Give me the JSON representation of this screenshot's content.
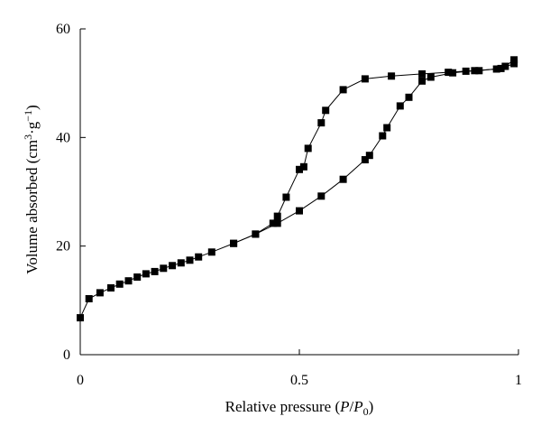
{
  "chart_data": {
    "type": "scatter",
    "xlabel": {
      "prefix": "Relative pressure (",
      "italic1": "P",
      "slash": "/",
      "italic2": "P",
      "subscript": "0",
      "suffix": ")"
    },
    "ylabel": {
      "prefix": "Volume absorbed (cm",
      "sup1": "3",
      "middle": "·g",
      "sup2": "−1",
      "suffix": ")"
    },
    "xlim": [
      0,
      1
    ],
    "ylim": [
      0,
      60
    ],
    "xticks": [
      {
        "value": 0,
        "label": "0"
      },
      {
        "value": 0.5,
        "label": "0.5"
      },
      {
        "value": 1,
        "label": "1"
      }
    ],
    "yticks": [
      {
        "value": 0,
        "label": "0"
      },
      {
        "value": 20,
        "label": "20"
      },
      {
        "value": 40,
        "label": "40"
      },
      {
        "value": 60,
        "label": "60"
      }
    ],
    "grid": false,
    "legend": "none",
    "marker_color": "#000000",
    "series": [
      {
        "points": [
          [
            0.0,
            6.8
          ],
          [
            0.02,
            10.3
          ],
          [
            0.045,
            11.4
          ],
          [
            0.07,
            12.3
          ],
          [
            0.09,
            13.0
          ],
          [
            0.11,
            13.6
          ],
          [
            0.13,
            14.3
          ],
          [
            0.15,
            14.9
          ],
          [
            0.17,
            15.3
          ],
          [
            0.19,
            15.9
          ],
          [
            0.21,
            16.4
          ],
          [
            0.23,
            16.9
          ],
          [
            0.25,
            17.4
          ],
          [
            0.27,
            18.0
          ],
          [
            0.3,
            18.9
          ],
          [
            0.35,
            20.5
          ],
          [
            0.4,
            22.2
          ],
          [
            0.45,
            24.2
          ],
          [
            0.5,
            26.5
          ],
          [
            0.55,
            29.2
          ],
          [
            0.6,
            32.3
          ],
          [
            0.65,
            35.9
          ],
          [
            0.66,
            36.7
          ],
          [
            0.69,
            40.3
          ],
          [
            0.7,
            41.8
          ],
          [
            0.73,
            45.8
          ],
          [
            0.75,
            47.4
          ],
          [
            0.78,
            50.4
          ],
          [
            0.8,
            51.1
          ],
          [
            0.85,
            51.9
          ],
          [
            0.9,
            52.3
          ],
          [
            0.95,
            52.6
          ],
          [
            0.97,
            53.1
          ],
          [
            0.99,
            54.3
          ]
        ]
      },
      {
        "points": [
          [
            0.99,
            53.6
          ],
          [
            0.96,
            52.7
          ],
          [
            0.91,
            52.3
          ],
          [
            0.88,
            52.2
          ],
          [
            0.84,
            52.0
          ],
          [
            0.78,
            51.7
          ],
          [
            0.71,
            51.3
          ],
          [
            0.65,
            50.8
          ],
          [
            0.6,
            48.8
          ],
          [
            0.56,
            45.0
          ],
          [
            0.55,
            42.7
          ],
          [
            0.52,
            38.0
          ],
          [
            0.51,
            34.6
          ],
          [
            0.5,
            34.1
          ],
          [
            0.47,
            29.0
          ],
          [
            0.45,
            25.5
          ],
          [
            0.44,
            24.2
          ],
          [
            0.4,
            22.2
          ],
          [
            0.35,
            20.5
          ]
        ]
      }
    ]
  }
}
